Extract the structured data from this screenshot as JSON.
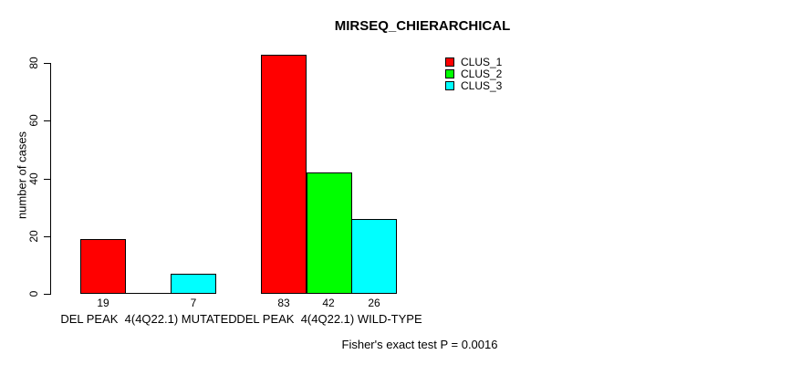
{
  "chart_data": {
    "type": "bar",
    "title": "MIRSEQ_CHIERARCHICAL",
    "xlabel": "",
    "ylabel": "number of cases",
    "ylim": [
      0,
      80
    ],
    "yticks": [
      0,
      20,
      40,
      60,
      80
    ],
    "grid": false,
    "legend_position": "inside-top-right",
    "categories": [
      "DEL PEAK  4(4Q22.1) MUTATED",
      "DEL PEAK  4(4Q22.1) WILD-TYPE"
    ],
    "series": [
      {
        "name": "CLUS_1",
        "color": "#FF0000",
        "values": [
          19,
          83
        ]
      },
      {
        "name": "CLUS_2",
        "color": "#00FF00",
        "values": [
          0,
          42
        ]
      },
      {
        "name": "CLUS_3",
        "color": "#00FFFF",
        "values": [
          7,
          26
        ]
      }
    ],
    "bar_border_color": "#000000",
    "background_color": "#FFFFFF",
    "annotation": "Fisher's exact test P = 0.0016"
  }
}
